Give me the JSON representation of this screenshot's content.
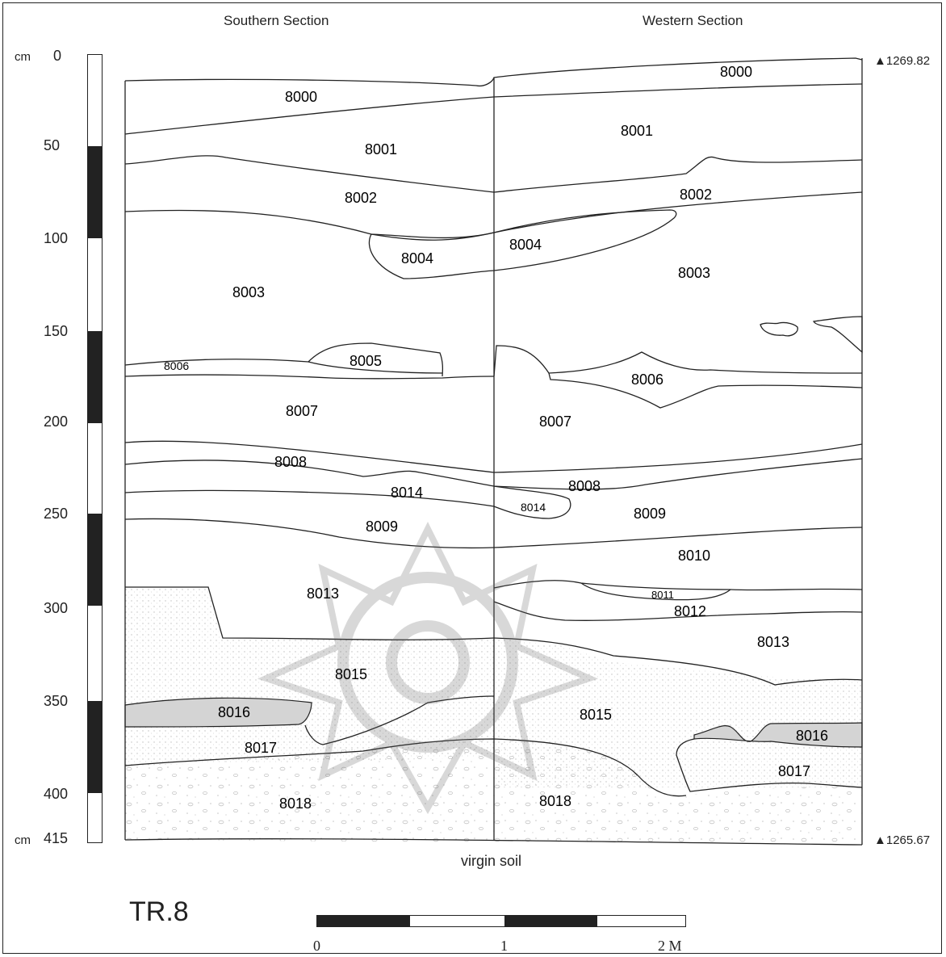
{
  "headers": {
    "south": "Southern Section",
    "west": "Western Section"
  },
  "depth_scale": {
    "unit": "cm",
    "ticks": [
      "0",
      "50",
      "100",
      "150",
      "200",
      "250",
      "300",
      "350",
      "400",
      "415"
    ]
  },
  "elevations": {
    "top": "▲1269.82",
    "bottom": "▲1265.67"
  },
  "layers_south": {
    "l8000": "8000",
    "l8001": "8001",
    "l8002": "8002",
    "l8004": "8004",
    "l8003": "8003",
    "l8006": "8006",
    "l8005": "8005",
    "l8007": "8007",
    "l8008": "8008",
    "l8014": "8014",
    "l8009": "8009",
    "l8013": "8013",
    "l8015": "8015",
    "l8016": "8016",
    "l8017": "8017",
    "l8018": "8018"
  },
  "layers_west": {
    "l8000": "8000",
    "l8001": "8001",
    "l8002": "8002",
    "l8004": "8004",
    "l8003": "8003",
    "l8006": "8006",
    "l8007": "8007",
    "l8008": "8008",
    "l8014": "8014",
    "l8009": "8009",
    "l8010": "8010",
    "l8011": "8011",
    "l8012": "8012",
    "l8013": "8013",
    "l8015": "8015",
    "l8016": "8016",
    "l8017": "8017",
    "l8018": "8018"
  },
  "base_label": "virgin soil",
  "trench": "TR.8",
  "bar_scale": {
    "ticks": [
      "0",
      "1",
      "2 M"
    ]
  },
  "colors": {
    "line": "#222222",
    "fill_8016": "#d4d4d4",
    "stipple": "#bdbdbd"
  }
}
